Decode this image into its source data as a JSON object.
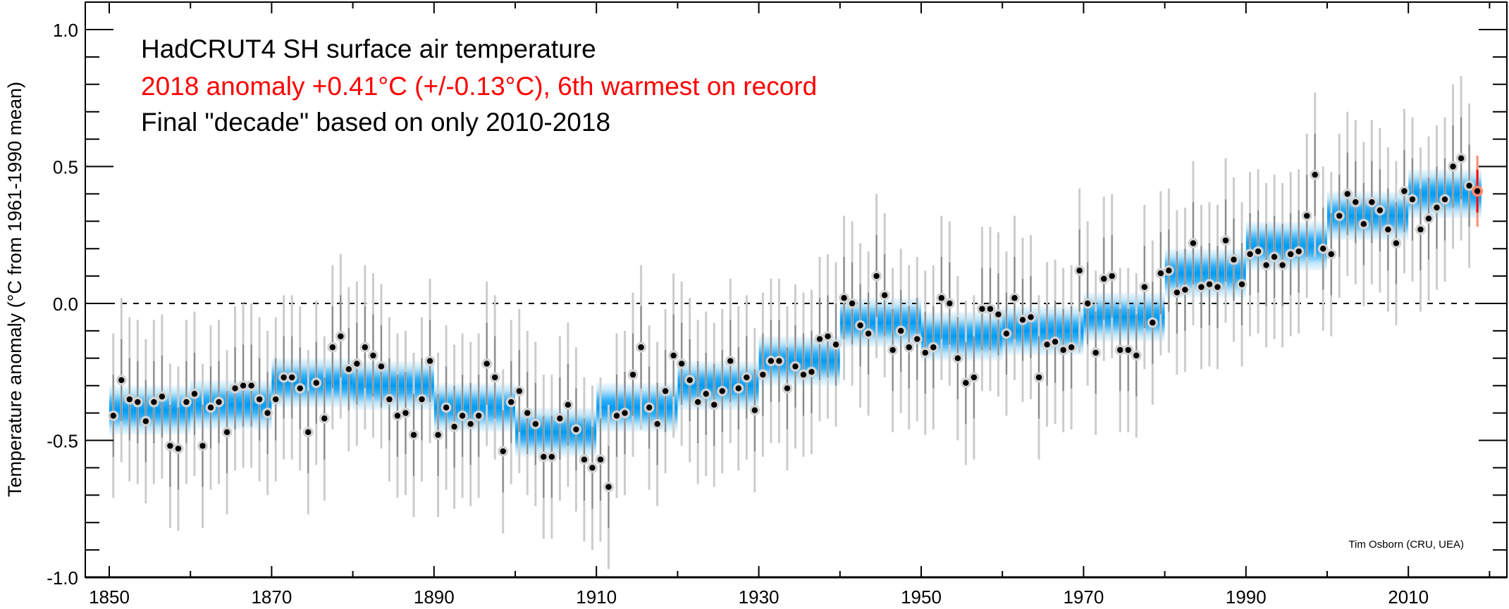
{
  "chart_data": {
    "type": "scatter",
    "title": "HadCRUT4 SH surface air temperature",
    "annotations": [
      {
        "text": "HadCRUT4 SH surface air temperature",
        "color": "#000000"
      },
      {
        "text": "2018 anomaly +0.41°C (+/-0.13°C), 6th warmest on record",
        "color": "#ff0000"
      },
      {
        "text": "Final \"decade\" based on only 2010-2018",
        "color": "#000000"
      }
    ],
    "credit": "Tim Osborn (CRU, UEA)",
    "xlabel": "",
    "ylabel": "Temperature anomaly (°C from 1961-1990 mean)",
    "xlim": [
      1847,
      2022
    ],
    "ylim": [
      -1.0,
      1.1
    ],
    "x_ticks": [
      1850,
      1870,
      1890,
      1910,
      1930,
      1950,
      1970,
      1990,
      2010
    ],
    "x_tick_labels": [
      "1850",
      "1870",
      "1890",
      "1910",
      "1930",
      "1950",
      "1970",
      "1990",
      "2010"
    ],
    "x_minor_ticks": [
      1860,
      1880,
      1900,
      1920,
      1940,
      1960,
      1980,
      2000,
      2020
    ],
    "y_ticks": [
      -1.0,
      -0.5,
      0.0,
      0.5,
      1.0
    ],
    "y_tick_labels": [
      "-1.0",
      "-0.5",
      "0.0",
      "0.5",
      "1.0"
    ],
    "y_minor_step": 0.1,
    "zero_line": "dashed",
    "colors": {
      "band": "#009cf5",
      "dot": "#000000",
      "halo": "#d2d2d2",
      "error_outer": "#cccccc",
      "error_inner": "#8a8a8a",
      "highlight": "#ff0000",
      "highlight_halo": "#ff8a73"
    },
    "annual": {
      "years": [
        1850,
        1851,
        1852,
        1853,
        1854,
        1855,
        1856,
        1857,
        1858,
        1859,
        1860,
        1861,
        1862,
        1863,
        1864,
        1865,
        1866,
        1867,
        1868,
        1869,
        1870,
        1871,
        1872,
        1873,
        1874,
        1875,
        1876,
        1877,
        1878,
        1879,
        1880,
        1881,
        1882,
        1883,
        1884,
        1885,
        1886,
        1887,
        1888,
        1889,
        1890,
        1891,
        1892,
        1893,
        1894,
        1895,
        1896,
        1897,
        1898,
        1899,
        1900,
        1901,
        1902,
        1903,
        1904,
        1905,
        1906,
        1907,
        1908,
        1909,
        1910,
        1911,
        1912,
        1913,
        1914,
        1915,
        1916,
        1917,
        1918,
        1919,
        1920,
        1921,
        1922,
        1923,
        1924,
        1925,
        1926,
        1927,
        1928,
        1929,
        1930,
        1931,
        1932,
        1933,
        1934,
        1935,
        1936,
        1937,
        1938,
        1939,
        1940,
        1941,
        1942,
        1943,
        1944,
        1945,
        1946,
        1947,
        1948,
        1949,
        1950,
        1951,
        1952,
        1953,
        1954,
        1955,
        1956,
        1957,
        1958,
        1959,
        1960,
        1961,
        1962,
        1963,
        1964,
        1965,
        1966,
        1967,
        1968,
        1969,
        1970,
        1971,
        1972,
        1973,
        1974,
        1975,
        1976,
        1977,
        1978,
        1979,
        1980,
        1981,
        1982,
        1983,
        1984,
        1985,
        1986,
        1987,
        1988,
        1989,
        1990,
        1991,
        1992,
        1993,
        1994,
        1995,
        1996,
        1997,
        1998,
        1999,
        2000,
        2001,
        2002,
        2003,
        2004,
        2005,
        2006,
        2007,
        2008,
        2009,
        2010,
        2011,
        2012,
        2013,
        2014,
        2015,
        2016,
        2017,
        2018
      ],
      "values": [
        -0.41,
        -0.28,
        -0.35,
        -0.36,
        -0.43,
        -0.36,
        -0.34,
        -0.52,
        -0.53,
        -0.36,
        -0.33,
        -0.52,
        -0.38,
        -0.36,
        -0.47,
        -0.31,
        -0.3,
        -0.3,
        -0.35,
        -0.4,
        -0.35,
        -0.27,
        -0.27,
        -0.31,
        -0.47,
        -0.29,
        -0.42,
        -0.16,
        -0.12,
        -0.24,
        -0.22,
        -0.16,
        -0.19,
        -0.23,
        -0.35,
        -0.41,
        -0.4,
        -0.48,
        -0.35,
        -0.21,
        -0.48,
        -0.38,
        -0.45,
        -0.41,
        -0.44,
        -0.41,
        -0.22,
        -0.27,
        -0.54,
        -0.36,
        -0.32,
        -0.4,
        -0.44,
        -0.56,
        -0.56,
        -0.42,
        -0.37,
        -0.46,
        -0.57,
        -0.6,
        -0.57,
        -0.67,
        -0.41,
        -0.4,
        -0.26,
        -0.16,
        -0.38,
        -0.44,
        -0.32,
        -0.19,
        -0.22,
        -0.28,
        -0.36,
        -0.33,
        -0.37,
        -0.32,
        -0.21,
        -0.31,
        -0.27,
        -0.39,
        -0.26,
        -0.21,
        -0.21,
        -0.31,
        -0.23,
        -0.26,
        -0.25,
        -0.13,
        -0.12,
        -0.15,
        0.02,
        0.0,
        -0.08,
        -0.11,
        0.1,
        0.03,
        -0.17,
        -0.1,
        -0.16,
        -0.13,
        -0.18,
        -0.16,
        0.02,
        0.0,
        -0.2,
        -0.29,
        -0.27,
        -0.02,
        -0.02,
        -0.04,
        -0.11,
        0.02,
        -0.06,
        -0.05,
        -0.27,
        -0.15,
        -0.14,
        -0.17,
        -0.16,
        0.12,
        0.0,
        -0.18,
        0.09,
        0.1,
        -0.17,
        -0.17,
        -0.19,
        0.06,
        -0.07,
        0.11,
        0.12,
        0.04,
        0.05,
        0.22,
        0.06,
        0.07,
        0.06,
        0.23,
        0.16,
        0.07,
        0.18,
        0.19,
        0.14,
        0.17,
        0.14,
        0.18,
        0.19,
        0.32,
        0.47,
        0.2,
        0.18,
        0.32,
        0.4,
        0.37,
        0.29,
        0.37,
        0.34,
        0.27,
        0.22,
        0.41,
        0.38,
        0.27,
        0.31,
        0.35,
        0.38,
        0.5,
        0.53,
        0.43,
        0.41
      ],
      "error_outer": 0.3,
      "error_inner": 0.15,
      "highlight_year": 2018,
      "highlight_error": 0.13
    },
    "decadal": [
      {
        "start": 1850,
        "end": 1860,
        "value": -0.39
      },
      {
        "start": 1860,
        "end": 1870,
        "value": -0.37
      },
      {
        "start": 1870,
        "end": 1880,
        "value": -0.29
      },
      {
        "start": 1880,
        "end": 1890,
        "value": -0.3
      },
      {
        "start": 1890,
        "end": 1900,
        "value": -0.38
      },
      {
        "start": 1900,
        "end": 1910,
        "value": -0.47
      },
      {
        "start": 1910,
        "end": 1920,
        "value": -0.38
      },
      {
        "start": 1920,
        "end": 1930,
        "value": -0.3
      },
      {
        "start": 1930,
        "end": 1940,
        "value": -0.21
      },
      {
        "start": 1940,
        "end": 1950,
        "value": -0.07
      },
      {
        "start": 1950,
        "end": 1960,
        "value": -0.12
      },
      {
        "start": 1960,
        "end": 1970,
        "value": -0.1
      },
      {
        "start": 1970,
        "end": 1980,
        "value": -0.05
      },
      {
        "start": 1980,
        "end": 1990,
        "value": 0.11
      },
      {
        "start": 1990,
        "end": 2000,
        "value": 0.21
      },
      {
        "start": 2000,
        "end": 2010,
        "value": 0.32
      },
      {
        "start": 2010,
        "end": 2019,
        "value": 0.4
      }
    ],
    "decadal_halfwidth": 0.09,
    "grid": false,
    "legend": "none"
  }
}
